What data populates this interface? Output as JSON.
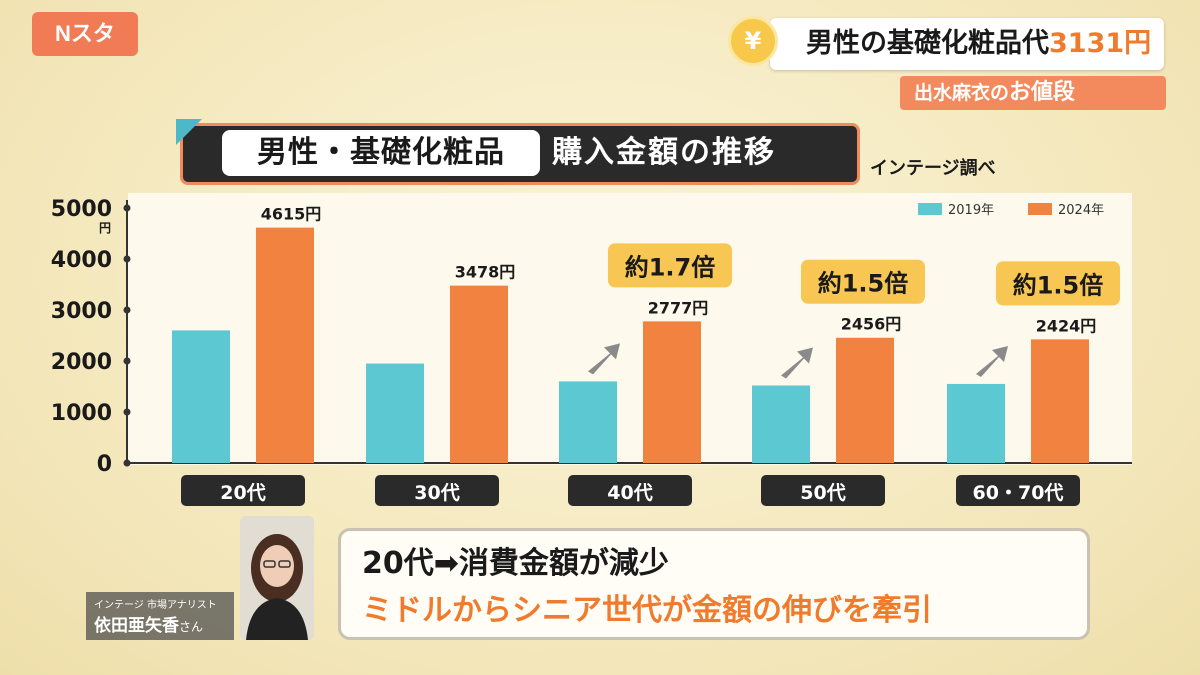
{
  "logo": {
    "text": "Nスタ"
  },
  "caption": {
    "coin": "¥",
    "main": "男性の基礎化粧品代",
    "price": "3131円",
    "sub_name": "出水麻衣の",
    "sub_suffix": "お値段"
  },
  "title": {
    "pill": "男性・基礎化粧品",
    "rest": "購入金額の推移",
    "source": "インテージ調べ"
  },
  "chart_data": {
    "type": "bar",
    "categories": [
      "20代",
      "30代",
      "40代",
      "50代",
      "60・70代"
    ],
    "series": [
      {
        "name": "2019年",
        "color": "#5cc8d2",
        "values": [
          2600,
          1950,
          1600,
          1520,
          1550
        ]
      },
      {
        "name": "2024年",
        "color": "#f28240",
        "values": [
          4615,
          3478,
          2777,
          2456,
          2424
        ]
      }
    ],
    "data_labels_2024": [
      "4615円",
      "3478円",
      "2777円",
      "2456円",
      "2424円"
    ],
    "y_ticks": [
      "0",
      "1000",
      "2000",
      "3000",
      "4000",
      "5000"
    ],
    "y_unit": "円",
    "ylim": [
      0,
      5000
    ],
    "annotations": [
      {
        "category": "40代",
        "text": "約1.7倍"
      },
      {
        "category": "50代",
        "text": "約1.5倍"
      },
      {
        "category": "60・70代",
        "text": "約1.5倍"
      }
    ],
    "legend_position": "top-right",
    "grid": false
  },
  "speaker": {
    "line1": "20代➡消費金額が減少",
    "line2": "ミドルからシニア世代が金額の伸びを牽引",
    "role": "インテージ 市場アナリスト",
    "name": "依田亜矢香",
    "honorific": "さん"
  }
}
